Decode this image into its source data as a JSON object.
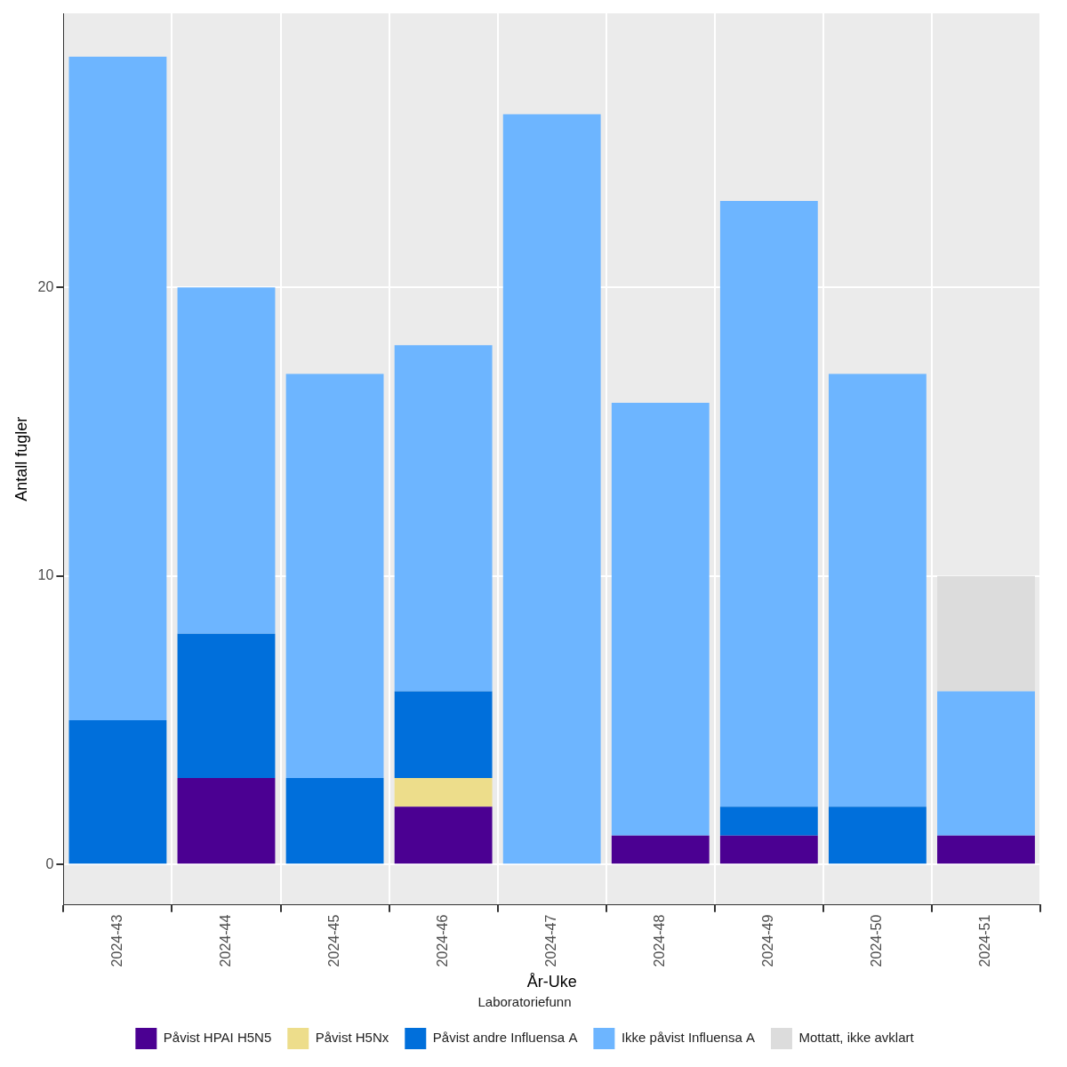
{
  "chart_data": {
    "type": "bar",
    "stacked": true,
    "grid": true,
    "legend": "bottom",
    "legend_title": "Laboratoriefunn",
    "x_label": "År-Uke",
    "y_label": "Antall fugler",
    "categories": [
      "2024-43",
      "2024-44",
      "2024-45",
      "2024-46",
      "2024-47",
      "2024-48",
      "2024-49",
      "2024-50",
      "2024-51"
    ],
    "series": [
      {
        "name": "Påvist HPAI H5N5",
        "color": "#4B0092",
        "values": [
          0,
          3,
          0,
          2,
          0,
          1,
          1,
          0,
          1
        ]
      },
      {
        "name": "Påvist H5Nx",
        "color": "#EDDD8B",
        "values": [
          0,
          0,
          0,
          1,
          0,
          0,
          0,
          0,
          0
        ]
      },
      {
        "name": "Påvist andre Influensa A",
        "color": "#006FDB",
        "values": [
          5,
          5,
          3,
          3,
          0,
          0,
          1,
          2,
          0
        ]
      },
      {
        "name": "Ikke påvist Influensa A",
        "color": "#6DB5FF",
        "values": [
          23,
          12,
          14,
          12,
          26,
          15,
          21,
          15,
          5
        ]
      },
      {
        "name": "Mottatt, ikke avklart",
        "color": "#DCDCDC",
        "values": [
          0,
          0,
          0,
          0,
          0,
          0,
          0,
          0,
          4
        ]
      }
    ],
    "ylim": [
      -1.4,
      29.5
    ],
    "yticks": [
      0,
      10,
      20
    ]
  }
}
